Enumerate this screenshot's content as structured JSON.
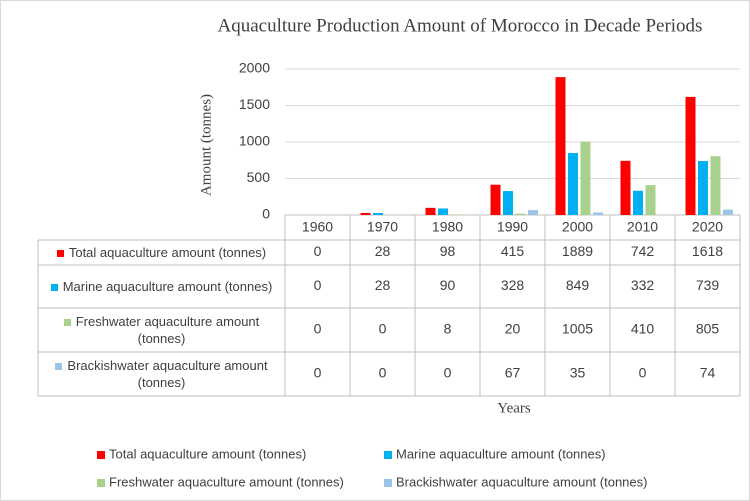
{
  "chart_data": {
    "type": "bar",
    "title": "Aquaculture Production Amount of Morocco in Decade Periods",
    "y_label": "Amount (tonnes)",
    "x_label": "Years",
    "categories": [
      "1960",
      "1970",
      "1980",
      "1990",
      "2000",
      "2010",
      "2020"
    ],
    "series": [
      {
        "name": "Total aquaculture amount (tonnes)",
        "color": "#ff0000",
        "values": [
          0,
          28,
          98,
          415,
          1889,
          742,
          1618
        ]
      },
      {
        "name": "Marine aquaculture amount (tonnes)",
        "color": "#00b0f0",
        "values": [
          0,
          28,
          90,
          328,
          849,
          332,
          739
        ]
      },
      {
        "name": "Freshwater aquaculture amount (tonnes)",
        "color": "#a9d18e",
        "values": [
          0,
          0,
          8,
          20,
          1005,
          410,
          805
        ]
      },
      {
        "name": "Brackishwater aquaculture amount (tonnes)",
        "color": "#9dc3e6",
        "values": [
          0,
          0,
          0,
          67,
          35,
          0,
          74
        ]
      }
    ],
    "ylim": [
      0,
      2000
    ],
    "yticks": [
      0,
      500,
      1000,
      1500,
      2000
    ],
    "grid": true
  }
}
